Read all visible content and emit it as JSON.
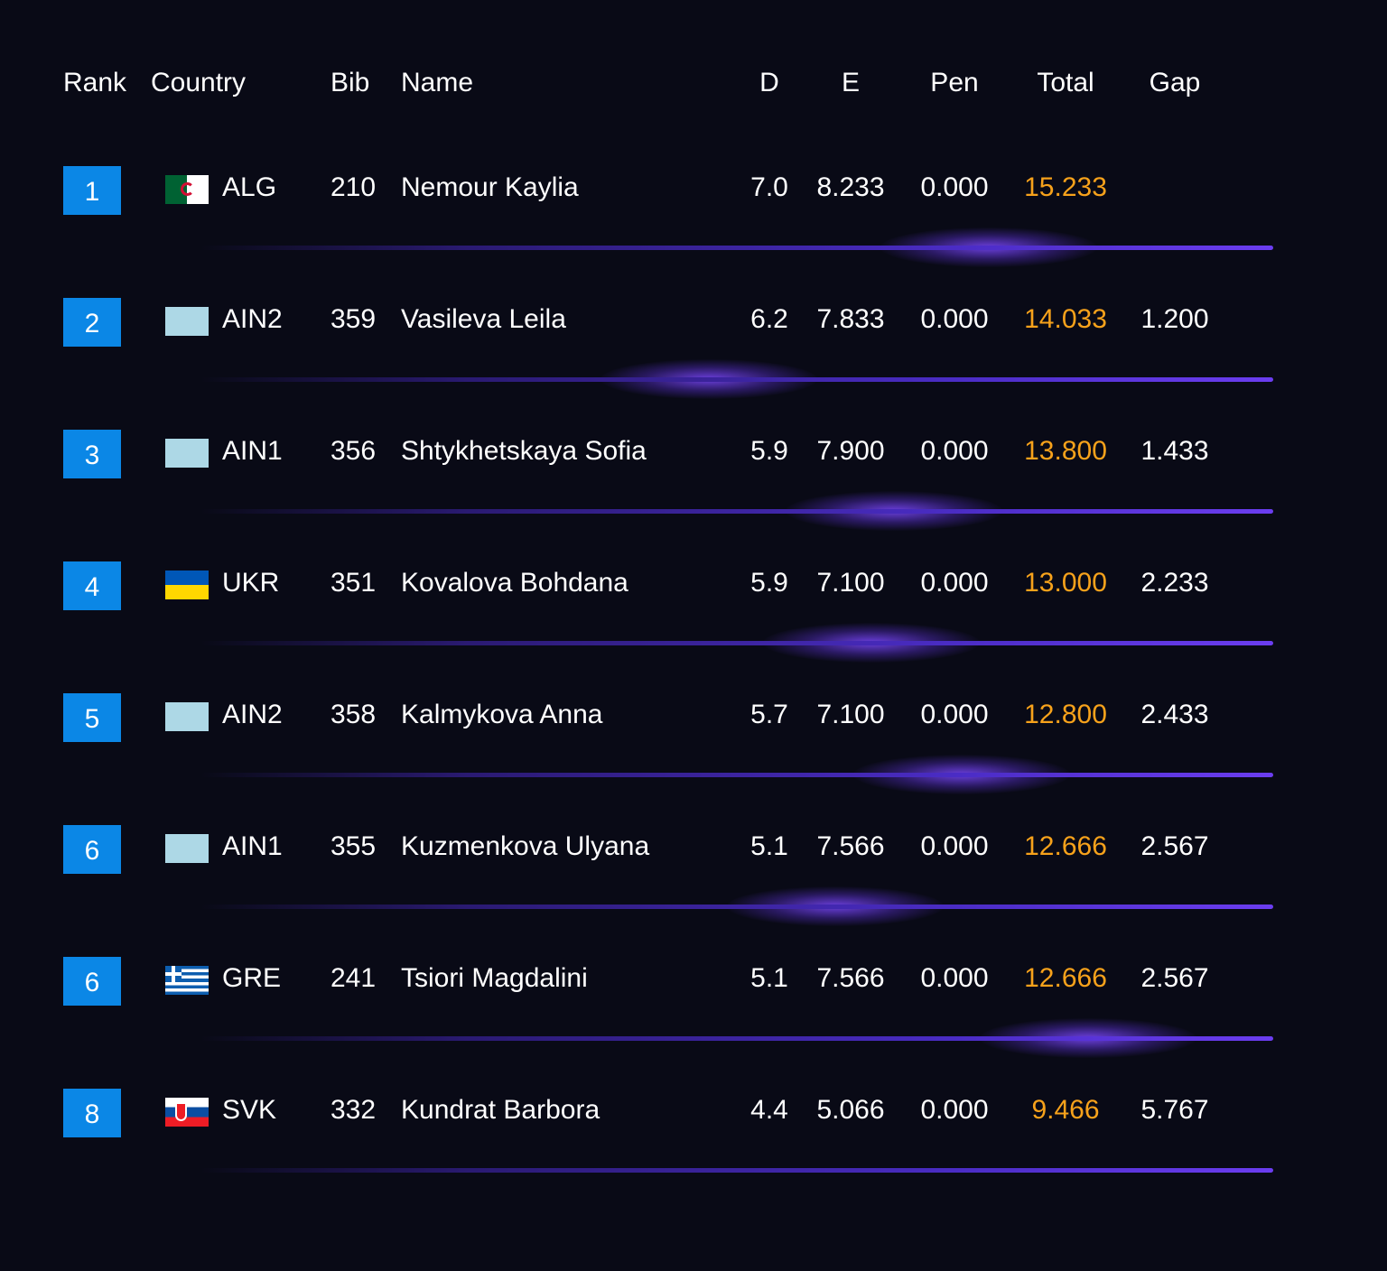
{
  "header": {
    "rank": "Rank",
    "country": "Country",
    "bib": "Bib",
    "name": "Name",
    "d": "D",
    "e": "E",
    "pen": "Pen",
    "total": "Total",
    "gap": "Gap"
  },
  "colors": {
    "background": "#090a16",
    "rank_badge": "#0b87e6",
    "total_text": "#f7a21b",
    "separator": "#6b3df0"
  },
  "rows": [
    {
      "rank": "1",
      "flag": "algeria-flag",
      "country": "ALG",
      "bib": "210",
      "name": "Nemour Kaylia",
      "d": "7.0",
      "e": "8.233",
      "pen": "0.000",
      "total": "15.233",
      "gap": ""
    },
    {
      "rank": "2",
      "flag": "ain-flag",
      "country": "AIN2",
      "bib": "359",
      "name": "Vasileva Leila",
      "d": "6.2",
      "e": "7.833",
      "pen": "0.000",
      "total": "14.033",
      "gap": "1.200"
    },
    {
      "rank": "3",
      "flag": "ain-flag",
      "country": "AIN1",
      "bib": "356",
      "name": "Shtykhetskaya Sofia",
      "d": "5.9",
      "e": "7.900",
      "pen": "0.000",
      "total": "13.800",
      "gap": "1.433"
    },
    {
      "rank": "4",
      "flag": "ukraine-flag",
      "country": "UKR",
      "bib": "351",
      "name": "Kovalova Bohdana",
      "d": "5.9",
      "e": "7.100",
      "pen": "0.000",
      "total": "13.000",
      "gap": "2.233"
    },
    {
      "rank": "5",
      "flag": "ain-flag",
      "country": "AIN2",
      "bib": "358",
      "name": "Kalmykova Anna",
      "d": "5.7",
      "e": "7.100",
      "pen": "0.000",
      "total": "12.800",
      "gap": "2.433"
    },
    {
      "rank": "6",
      "flag": "ain-flag",
      "country": "AIN1",
      "bib": "355",
      "name": "Kuzmenkova Ulyana",
      "d": "5.1",
      "e": "7.566",
      "pen": "0.000",
      "total": "12.666",
      "gap": "2.567"
    },
    {
      "rank": "6",
      "flag": "greece-flag",
      "country": "GRE",
      "bib": "241",
      "name": "Tsiori Magdalini",
      "d": "5.1",
      "e": "7.566",
      "pen": "0.000",
      "total": "12.666",
      "gap": "2.567"
    },
    {
      "rank": "8",
      "flag": "slovakia-flag",
      "country": "SVK",
      "bib": "332",
      "name": "Kundrat Barbora",
      "d": "4.4",
      "e": "5.066",
      "pen": "0.000",
      "total": "9.466",
      "gap": "5.767"
    }
  ]
}
